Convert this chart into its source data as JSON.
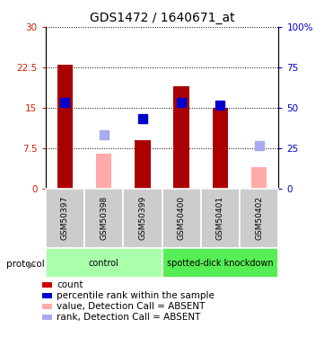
{
  "title": "GDS1472 / 1640671_at",
  "categories": [
    "GSM50397",
    "GSM50398",
    "GSM50399",
    "GSM50400",
    "GSM50401",
    "GSM50402"
  ],
  "bar_values": [
    23.0,
    null,
    9.0,
    19.0,
    15.0,
    null
  ],
  "bar_absent_values": [
    null,
    6.5,
    null,
    null,
    null,
    4.0
  ],
  "rank_values": [
    16.0,
    null,
    13.0,
    16.0,
    15.5,
    null
  ],
  "rank_absent_values": [
    null,
    10.0,
    null,
    null,
    null,
    8.0
  ],
  "bar_color": "#aa0000",
  "bar_absent_color": "#ffaaaa",
  "rank_color": "#0000cc",
  "rank_absent_color": "#aaaaee",
  "ylim_left": [
    0,
    30
  ],
  "ylim_right": [
    0,
    100
  ],
  "yticks_left": [
    0,
    7.5,
    15.0,
    22.5,
    30
  ],
  "ytick_labels_left": [
    "0",
    "7.5",
    "15",
    "22.5",
    "30"
  ],
  "yticks_right": [
    0,
    25,
    50,
    75,
    100
  ],
  "ytick_labels_right": [
    "0",
    "25",
    "50",
    "75",
    "100%"
  ],
  "group_labels": [
    "control",
    "spotted-dick knockdown"
  ],
  "group_ranges": [
    [
      0,
      3
    ],
    [
      3,
      6
    ]
  ],
  "group_colors": [
    "#aaffaa",
    "#55ee55"
  ],
  "protocol_label": "protocol",
  "legend_items": [
    {
      "label": "count",
      "color": "#cc0000"
    },
    {
      "label": "percentile rank within the sample",
      "color": "#0000cc"
    },
    {
      "label": "value, Detection Call = ABSENT",
      "color": "#ffaaaa"
    },
    {
      "label": "rank, Detection Call = ABSENT",
      "color": "#aaaaee"
    }
  ],
  "bar_width": 0.4,
  "rank_marker_size": 7
}
